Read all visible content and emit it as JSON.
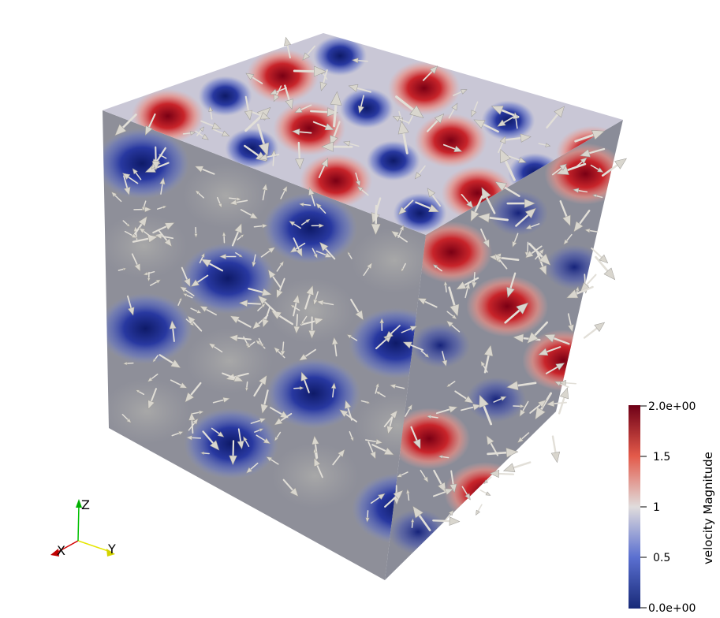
{
  "legend": {
    "title": "velocity Magnitude",
    "ticks": [
      "2.0e+00",
      "1.5",
      "1",
      "0.5",
      "0.0e+00"
    ],
    "colors": {
      "low": "#1f2f7e",
      "low_mid": "#3b4cc0",
      "mid": "#dddddd",
      "high_mid": "#e8604a",
      "high": "#7a0019"
    }
  },
  "orientation_axes": {
    "x": "X",
    "y": "Y",
    "z": "Z"
  },
  "colors": {
    "x_axis": "#d40000",
    "y_axis": "#e6e600",
    "z_axis": "#00c000",
    "arrow": "#e4e1dc",
    "face_base": "#8f8f96"
  }
}
